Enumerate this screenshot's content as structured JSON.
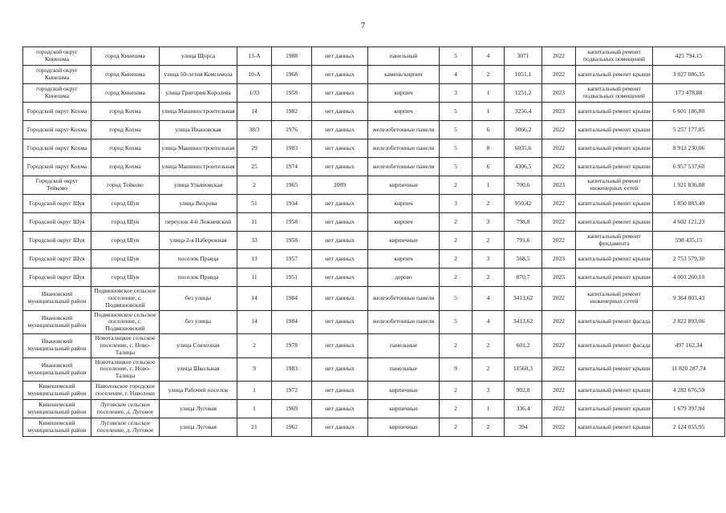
{
  "page": {
    "number": "7"
  },
  "table": {
    "column_keys": [
      "municipality",
      "settlement",
      "street",
      "house",
      "year_built",
      "survey_year",
      "wall_material",
      "floors",
      "entrances",
      "area",
      "repair_year",
      "repair_type",
      "cost"
    ],
    "rows": [
      [
        "городской округ Кинешма",
        "город Кинешма",
        "улица Щорса",
        "13-А",
        "1988",
        "нет данных",
        "панельный",
        "5",
        "4",
        "3071",
        "2022",
        "капитальный ремонт подвальных помещений",
        "425 794,15"
      ],
      [
        "городской округ Кинешма",
        "город Кинешма",
        "улица 50-летия Комсомола",
        "10-А",
        "1968",
        "нет данных",
        "камень/кирпич",
        "4",
        "2",
        "1051,1",
        "2022",
        "капитальный ремонт крыши",
        "3 027 086,35"
      ],
      [
        "городской округ Кинешма",
        "город Кинешма",
        "улица Григория Королева",
        "1/33",
        "1958",
        "нет данных",
        "кирпич",
        "3",
        "1",
        "1251,2",
        "2023",
        "капитальный ремонт подвальных помещений",
        "173 478,88"
      ],
      [
        "Городской округ Кохма",
        "город Кохма",
        "улица Машиностроительная",
        "14",
        "1982",
        "нет данных",
        "кирпич",
        "5",
        "1",
        "3256,4",
        "2023",
        "капитальный ремонт крыши",
        "6 601 186,80"
      ],
      [
        "Городской округ Кохма",
        "город Кохма",
        "улица Ивановская",
        "38/3",
        "1976",
        "нет данных",
        "железобетонные панели",
        "5",
        "6",
        "3866,2",
        "2022",
        "капитальный ремонт крыши",
        "5 257 177,85"
      ],
      [
        "Городской округ Кохма",
        "город Кохма",
        "улица Машиностроительная",
        "29",
        "1983",
        "нет данных",
        "железобетонные панели",
        "5",
        "8",
        "6035,6",
        "2022",
        "капитальный ремонт крыши",
        "8 913 230,06"
      ],
      [
        "Городской округ Кохма",
        "город Кохма",
        "улица Машиностроительная",
        "25",
        "1974",
        "нет данных",
        "железобетонные панели",
        "5",
        "6",
        "4306,5",
        "2022",
        "капитальный ремонт крыши",
        "6 957 537,60"
      ],
      [
        "Городской округ Тейково",
        "город Тейково",
        "улица Ульяновская",
        "2",
        "1965",
        "2009",
        "кирпичные",
        "2",
        "1",
        "700,6",
        "2023",
        "капитальный ремонт инженерных сетей",
        "1 921 836,88"
      ],
      [
        "Городской округ Шуя",
        "город Шуя",
        "улица Вихрева",
        "51",
        "1934",
        "нет данных",
        "кирпич",
        "3",
        "2",
        "950,42",
        "2022",
        "капитальный ремонт крыши",
        "1 850 883,40"
      ],
      [
        "Городской округ Шуя",
        "город Шуя",
        "переулок 4-й Лежневский",
        "11",
        "1958",
        "нет данных",
        "кирпич",
        "2",
        "3",
        "798,8",
        "2022",
        "капитальный ремонт крыши",
        "4 602 121,23"
      ],
      [
        "Городской округ Шуя",
        "город Шуя",
        "улица 2-я Набережная",
        "33",
        "1958",
        "нет данных",
        "кирпичные",
        "2",
        "2",
        "791,6",
        "2022",
        "капитальный ремонт фундамента",
        "598 435,15"
      ],
      [
        "Городской округ Шуя",
        "город Шуя",
        "поселок Правда",
        "13",
        "1957",
        "нет данных",
        "кирпич",
        "2",
        "3",
        "568,5",
        "2023",
        "капитальный ремонт крыши",
        "2 753 579,30"
      ],
      [
        "Городской округ Шуя",
        "город Шуя",
        "поселок Правда",
        "11",
        "1951",
        "нет данных",
        "дерево",
        "2",
        "2",
        "870,7",
        "2023",
        "капитальный ремонт крыши",
        "4 003 260,10"
      ],
      [
        "Ивановский муниципальный район",
        "Подвязновское сельское поселение, с. Подвязновский",
        "без улицы",
        "14",
        "1984",
        "нет данных",
        "железобетонные панели",
        "5",
        "4",
        "3413,62",
        "2022",
        "капитальный ремонт инженерных сетей",
        "9 364 003,43"
      ],
      [
        "Ивановский муниципальный район",
        "Подвязновское сельское поселение, с. Подвязновский",
        "без улицы",
        "14",
        "1984",
        "нет данных",
        "железобетонные панели",
        "5",
        "4",
        "3413,62",
        "2022",
        "капитальный ремонт фасада",
        "2 822 893,06"
      ],
      [
        "Ивановский муниципальный район",
        "Новоталицкое сельское поселение, с. Ново-Талицы",
        "улица Совхозная",
        "2",
        "1978",
        "нет данных",
        "панельные",
        "2",
        "2",
        "601,2",
        "2022",
        "капитальный ремонт фасада",
        "497 162,34"
      ],
      [
        "Ивановский муниципальный район",
        "Новоталицкое сельское поселение, с. Ново-Талицы",
        "улица Школьная",
        "9",
        "1983",
        "нет данных",
        "панельные",
        "9",
        "2",
        "11560,3",
        "2022",
        "капитальный ремонт крыши",
        "11 820 287,74"
      ],
      [
        "Кинешемский муниципальный район",
        "Наволокское городское поселение, г. Наволоки",
        "улица Рабочий поселок",
        "1",
        "1972",
        "нет данных",
        "кирпичные",
        "2",
        "3",
        "902,8",
        "2022",
        "капитальный ремонт крыши",
        "4 282 676,59"
      ],
      [
        "Кинешемский муниципальный район",
        "Луговское сельское поселение, д. Луговое",
        "улица Луговая",
        "1",
        "1969",
        "нет данных",
        "кирпичные",
        "2",
        "1",
        "336,4",
        "2022",
        "капитальный ремонт крыши",
        "1 679 397,94"
      ],
      [
        "Кинешемский муниципальный район",
        "Луговское сельское поселение, д. Луговое",
        "улица Луговая",
        "21",
        "1962",
        "нет данных",
        "кирпичные",
        "2",
        "2",
        "394",
        "2022",
        "капитальный ремонт крыши",
        "2 124 055,95"
      ]
    ]
  }
}
